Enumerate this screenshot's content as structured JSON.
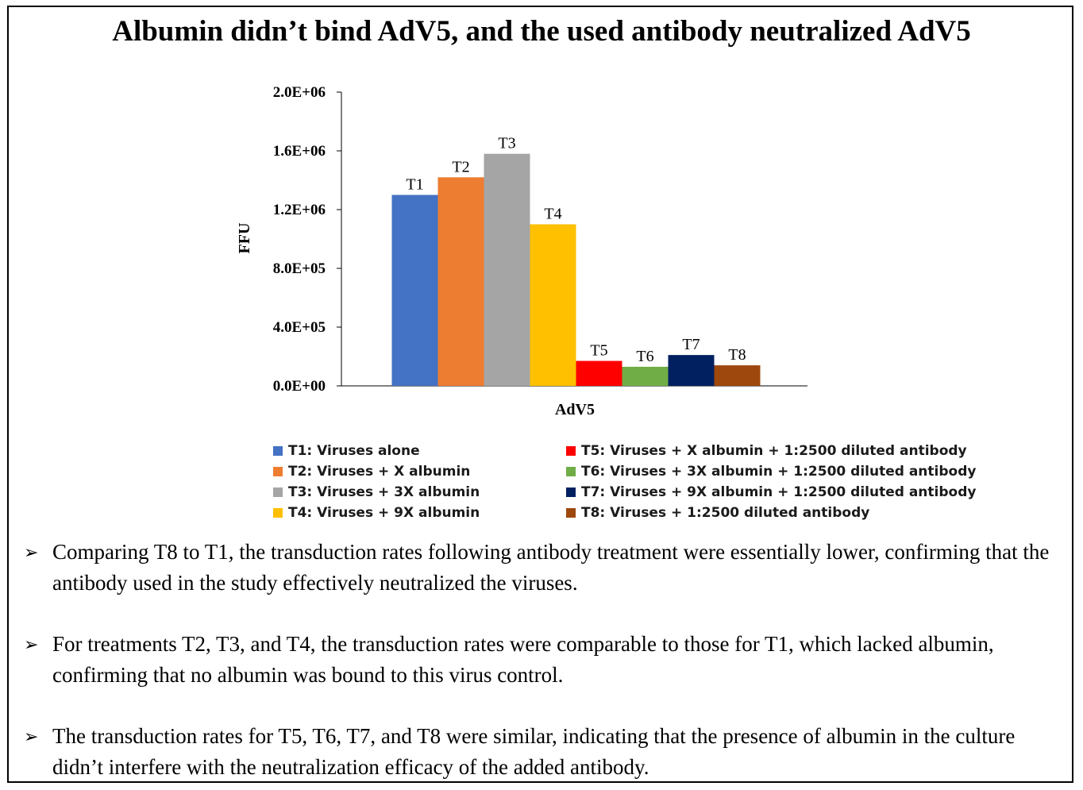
{
  "title": "Albumin didn’t bind AdV5, and the used antibody neutralized AdV5",
  "chart_data": {
    "type": "bar",
    "categories": [
      "AdV5"
    ],
    "xlabel": "AdV5",
    "ylabel": "FFU",
    "ylim": [
      0,
      2000000
    ],
    "yticks": [
      0,
      400000,
      800000,
      1200000,
      1600000,
      2000000
    ],
    "ytick_labels": [
      "0.0E+00",
      "4.0E+05",
      "8.0E+05",
      "1.2E+06",
      "1.6E+06",
      "2.0E+06"
    ],
    "grid": false,
    "legend_position": "bottom",
    "series": [
      {
        "name": "T1: Viruses alone",
        "label": "T1",
        "values": [
          1300000
        ],
        "color": "#4472C4"
      },
      {
        "name": "T2: Viruses + X albumin",
        "label": "T2",
        "values": [
          1420000
        ],
        "color": "#ED7D31"
      },
      {
        "name": "T3: Viruses + 3X albumin",
        "label": "T3",
        "values": [
          1580000
        ],
        "color": "#A5A5A5"
      },
      {
        "name": "T4: Viruses + 9X albumin",
        "label": "T4",
        "values": [
          1100000
        ],
        "color": "#FFC000"
      },
      {
        "name": "T5: Viruses + X albumin + 1:2500 diluted antibody",
        "label": "T5",
        "values": [
          170000
        ],
        "color": "#FF0000"
      },
      {
        "name": "T6: Viruses + 3X albumin + 1:2500 diluted antibody",
        "label": "T6",
        "values": [
          130000
        ],
        "color": "#70AD47"
      },
      {
        "name": "T7: Viruses + 9X albumin + 1:2500 diluted antibody",
        "label": "T7",
        "values": [
          210000
        ],
        "color": "#002060"
      },
      {
        "name": "T8: Viruses + 1:2500 diluted antibody",
        "label": "T8",
        "values": [
          140000
        ],
        "color": "#9E480E"
      }
    ]
  },
  "notes": [
    {
      "marker": "➢",
      "text": "Comparing T8 to T1, the transduction rates following antibody treatment were essentially lower, confirming that the antibody used in the study effectively neutralized the viruses."
    },
    {
      "marker": "➢",
      "text": " For treatments T2, T3, and T4, the transduction rates were comparable to those for T1, which lacked albumin, confirming that no albumin was bound to this virus control."
    },
    {
      "marker": "➢",
      "text": "The transduction rates for T5, T6, T7, and T8 were similar, indicating that the presence of albumin in the culture didn’t interfere with the neutralization efficacy of the added antibody."
    }
  ]
}
